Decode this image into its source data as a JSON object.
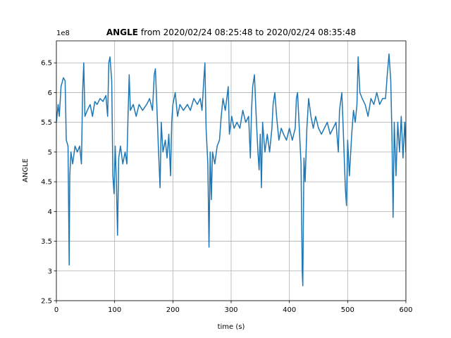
{
  "chart_data": {
    "type": "line",
    "title": {
      "bold": "ANGLE",
      "text": "from 2020/02/24 08:25:48 to 2020/02/24 08:35:48"
    },
    "x_label": "time (s)",
    "y_label": "ANGLE",
    "y_offset_label": "1e8",
    "xlim": [
      0,
      600
    ],
    "ylim": [
      2.5,
      6.87
    ],
    "xticks": [
      0,
      100,
      200,
      300,
      400,
      500,
      600
    ],
    "yticks": [
      2.5,
      3.0,
      3.5,
      4.0,
      4.5,
      5.0,
      5.5,
      6.0,
      6.5
    ],
    "grid": true,
    "x": [
      0,
      3,
      5,
      8,
      12,
      15,
      17,
      20,
      22,
      23,
      25,
      28,
      32,
      36,
      40,
      43,
      45,
      47,
      49,
      53,
      58,
      62,
      66,
      70,
      75,
      80,
      85,
      88,
      90,
      92,
      95,
      97,
      99,
      101,
      103,
      105,
      107,
      110,
      114,
      118,
      121,
      123,
      125,
      127,
      132,
      137,
      142,
      148,
      155,
      160,
      165,
      168,
      170,
      172,
      175,
      178,
      180,
      183,
      187,
      190,
      193,
      196,
      198,
      200,
      204,
      208,
      212,
      218,
      225,
      230,
      236,
      242,
      247,
      250,
      253,
      255,
      257,
      260,
      262,
      264,
      266,
      268,
      272,
      276,
      280,
      283,
      286,
      290,
      295,
      297,
      301,
      305,
      310,
      315,
      320,
      325,
      330,
      333,
      335,
      337,
      340,
      343,
      346,
      348,
      350,
      352,
      354,
      358,
      362,
      366,
      370,
      372,
      375,
      378,
      382,
      386,
      390,
      395,
      400,
      405,
      410,
      412,
      414,
      417,
      420,
      422,
      423,
      425,
      427,
      430,
      433,
      437,
      441,
      445,
      450,
      455,
      460,
      465,
      470,
      475,
      480,
      484,
      486,
      490,
      492,
      496,
      498,
      500,
      503,
      507,
      510,
      513,
      516,
      518,
      521,
      525,
      530,
      535,
      540,
      545,
      550,
      555,
      560,
      565,
      568,
      571,
      574,
      576,
      578,
      580,
      583,
      586,
      589,
      592,
      595,
      598,
      600
    ],
    "series": [
      {
        "name": "ANGLE",
        "color": "#1f77b4",
        "values": [
          5.5,
          5.8,
          5.6,
          6.1,
          6.25,
          6.2,
          5.2,
          5.1,
          3.1,
          4.6,
          5.0,
          4.8,
          5.1,
          5.0,
          5.1,
          4.8,
          6.0,
          6.5,
          5.6,
          5.7,
          5.8,
          5.6,
          5.85,
          5.8,
          5.9,
          5.85,
          5.95,
          5.6,
          6.5,
          6.6,
          6.2,
          4.6,
          4.3,
          5.1,
          4.5,
          3.6,
          4.9,
          5.1,
          4.8,
          5.0,
          4.8,
          5.6,
          6.3,
          5.7,
          5.8,
          5.6,
          5.8,
          5.7,
          5.8,
          5.9,
          5.7,
          6.3,
          6.4,
          5.9,
          5.1,
          4.4,
          5.5,
          5.0,
          5.2,
          4.9,
          5.3,
          4.6,
          5.5,
          5.8,
          6.0,
          5.6,
          5.8,
          5.7,
          5.8,
          5.7,
          5.9,
          5.8,
          5.9,
          5.7,
          6.2,
          6.5,
          5.4,
          4.8,
          3.4,
          5.0,
          4.2,
          5.0,
          4.8,
          5.1,
          5.2,
          5.6,
          5.9,
          5.7,
          6.1,
          5.3,
          5.6,
          5.4,
          5.5,
          5.4,
          5.7,
          5.5,
          5.6,
          4.9,
          5.7,
          6.1,
          6.3,
          5.6,
          5.0,
          4.7,
          5.3,
          4.4,
          5.5,
          5.0,
          5.3,
          5.0,
          5.4,
          5.8,
          6.0,
          5.6,
          5.2,
          5.4,
          5.3,
          5.2,
          5.4,
          5.2,
          5.4,
          5.9,
          6.0,
          5.4,
          4.8,
          3.0,
          2.75,
          4.9,
          4.5,
          5.4,
          5.9,
          5.6,
          5.4,
          5.6,
          5.4,
          5.3,
          5.4,
          5.5,
          5.3,
          5.4,
          5.5,
          5.0,
          5.7,
          6.0,
          5.5,
          4.4,
          4.1,
          5.2,
          4.6,
          5.3,
          5.7,
          5.5,
          5.8,
          6.6,
          6.0,
          5.9,
          5.8,
          5.6,
          5.9,
          5.8,
          6.0,
          5.8,
          5.9,
          5.9,
          6.3,
          6.65,
          6.2,
          5.3,
          3.9,
          5.5,
          4.6,
          5.5,
          5.0,
          5.6,
          4.9,
          5.5,
          5.0
        ]
      }
    ]
  }
}
